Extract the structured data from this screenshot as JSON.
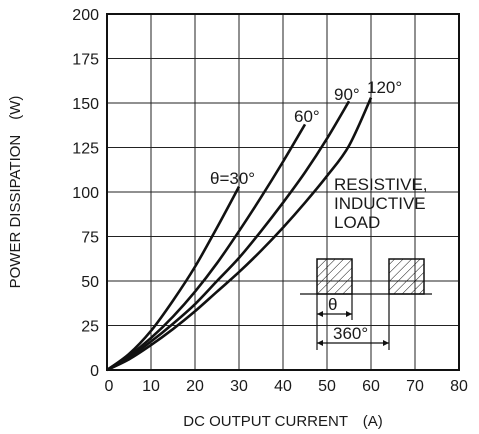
{
  "chart_data": {
    "type": "line",
    "title": "",
    "xlabel": "DC OUTPUT CURRENT　(A)",
    "ylabel": "POWER DISSIPATION　(W)",
    "xlim": [
      0,
      80
    ],
    "ylim": [
      0,
      200
    ],
    "xticks": [
      "0",
      "10",
      "20",
      "30",
      "40",
      "50",
      "60",
      "70",
      "80"
    ],
    "yticks": [
      "0",
      "25",
      "50",
      "75",
      "100",
      "125",
      "150",
      "175",
      "200"
    ],
    "grid": true,
    "series": [
      {
        "name": "θ=30°",
        "x": [
          0,
          5,
          10,
          15,
          20,
          25,
          30
        ],
        "y": [
          0,
          9,
          22,
          39,
          58,
          80,
          103
        ]
      },
      {
        "name": "60°",
        "x": [
          0,
          5,
          10,
          15,
          20,
          25,
          30,
          35,
          40,
          45
        ],
        "y": [
          0,
          8,
          18,
          30,
          44,
          60,
          78,
          97,
          117,
          138
        ]
      },
      {
        "name": "90°",
        "x": [
          0,
          5,
          10,
          15,
          20,
          25,
          30,
          35,
          40,
          45,
          50,
          55
        ],
        "y": [
          0,
          7,
          16,
          26,
          37,
          50,
          63,
          78,
          94,
          111,
          130,
          151
        ]
      },
      {
        "name": "120°",
        "x": [
          0,
          5,
          10,
          15,
          20,
          25,
          30,
          35,
          40,
          45,
          50,
          55,
          60
        ],
        "y": [
          0,
          6,
          14,
          23,
          33,
          44,
          55,
          67,
          80,
          94,
          109,
          126,
          153
        ]
      }
    ],
    "annotations": {
      "load_line1": "RESISTIVE,",
      "load_line2": "INDUCTIVE",
      "load_line3": "LOAD",
      "theta": "θ",
      "period": "360°"
    }
  }
}
